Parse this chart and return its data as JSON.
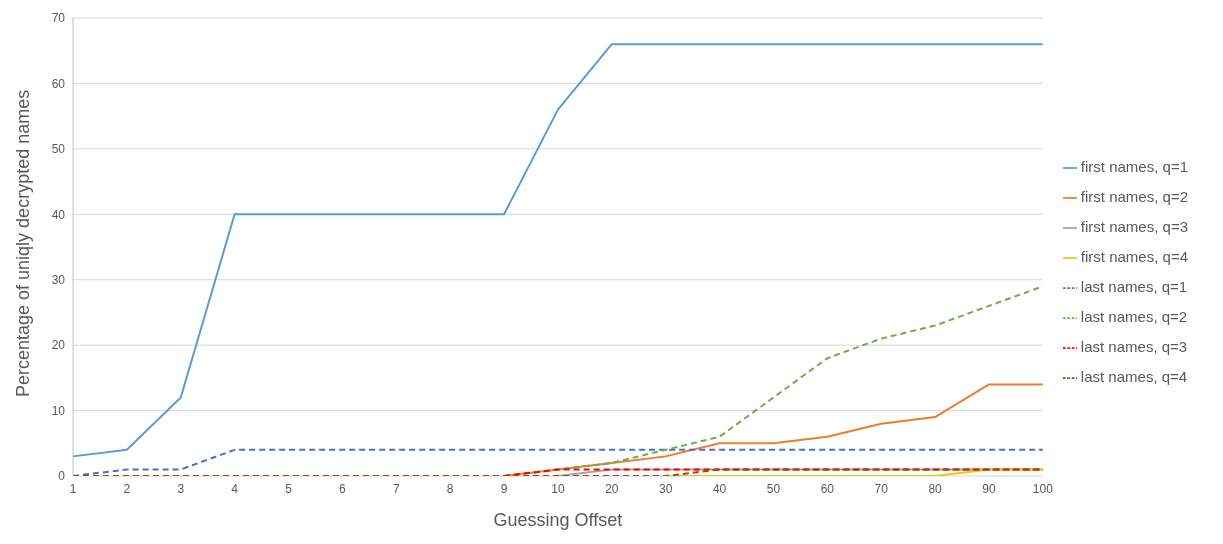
{
  "chart_data": {
    "type": "line",
    "xlabel": "Guessing Offset",
    "ylabel": "Percentage of uniqly decrypted names",
    "categories": [
      "1",
      "2",
      "3",
      "4",
      "5",
      "6",
      "7",
      "8",
      "9",
      "10",
      "20",
      "30",
      "40",
      "50",
      "60",
      "70",
      "80",
      "90",
      "100"
    ],
    "ylim": [
      0,
      70
    ],
    "yticks": [
      0,
      10,
      20,
      30,
      40,
      50,
      60,
      70
    ],
    "grid": "y",
    "legend": "right",
    "marker": "none",
    "series": [
      {
        "name": "first names, q=1",
        "color": "#5b9bd5",
        "line_style": "solid",
        "values": [
          3,
          4,
          12,
          40,
          40,
          40,
          40,
          40,
          40,
          56,
          66,
          66,
          66,
          66,
          66,
          66,
          66,
          66,
          66
        ]
      },
      {
        "name": "first names, q=2",
        "color": "#ed7d31",
        "line_style": "solid",
        "values": [
          null,
          null,
          null,
          null,
          null,
          null,
          null,
          null,
          0,
          1,
          2,
          3,
          5,
          5,
          6,
          8,
          9,
          14,
          14
        ]
      },
      {
        "name": "first names, q=3",
        "color": "#a5a5a5",
        "line_style": "solid",
        "values": [
          null,
          null,
          null,
          null,
          null,
          null,
          null,
          null,
          null,
          0,
          1,
          1,
          1,
          1,
          1,
          1,
          1,
          1,
          1
        ]
      },
      {
        "name": "first names, q=4",
        "color": "#ffc000",
        "line_style": "solid",
        "values": [
          null,
          null,
          null,
          null,
          null,
          null,
          null,
          null,
          null,
          null,
          null,
          0,
          0,
          0,
          0,
          0,
          0,
          1,
          1
        ]
      },
      {
        "name": "last names, q=1",
        "color": "#4472c4",
        "line_style": "dashed",
        "values": [
          0,
          1,
          1,
          4,
          4,
          4,
          4,
          4,
          4,
          4,
          4,
          4,
          4,
          4,
          4,
          4,
          4,
          4,
          4
        ]
      },
      {
        "name": "last names, q=2",
        "color": "#70ad47",
        "line_style": "dashed",
        "values": [
          null,
          null,
          null,
          null,
          null,
          null,
          null,
          null,
          0,
          1,
          2,
          4,
          6,
          12,
          18,
          21,
          23,
          26,
          29
        ]
      },
      {
        "name": "last names, q=3",
        "color": "#ff0000",
        "line_style": "dashed",
        "values": [
          null,
          null,
          null,
          null,
          null,
          null,
          null,
          null,
          0,
          1,
          1,
          1,
          1,
          1,
          1,
          1,
          1,
          1,
          1
        ]
      },
      {
        "name": "last names, q=4",
        "color": "#9e480e",
        "line_style": "dashed",
        "values": [
          0,
          0,
          0,
          0,
          0,
          0,
          0,
          0,
          0,
          0,
          0,
          0,
          1,
          1,
          1,
          1,
          1,
          1,
          1
        ]
      }
    ]
  }
}
